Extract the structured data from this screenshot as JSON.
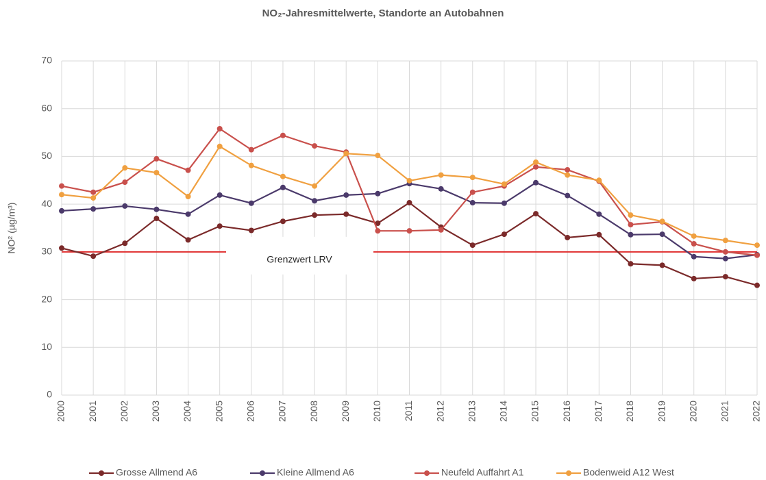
{
  "chart_data": {
    "type": "line",
    "title": "NO₂-Jahresmittelwerte, Standorte an Autobahnen",
    "y_label": "NO² (µg/m³)",
    "categories": [
      "2000",
      "2001",
      "2002",
      "2003",
      "2004",
      "2005",
      "2006",
      "2007",
      "2008",
      "2009",
      "2010",
      "2011",
      "2012",
      "2013",
      "2014",
      "2015",
      "2016",
      "2017",
      "2018",
      "2019",
      "2020",
      "2021",
      "2022"
    ],
    "series": [
      {
        "name": "Grosse Allmend A6",
        "color": "#7b2a2a",
        "values": [
          30.8,
          29.1,
          31.8,
          37.0,
          32.5,
          35.4,
          34.5,
          36.4,
          37.7,
          37.9,
          36.0,
          40.3,
          35.2,
          31.4,
          33.7,
          38.0,
          33.0,
          33.6,
          27.5,
          27.2,
          24.4,
          24.8,
          23.0
        ]
      },
      {
        "name": "Kleine Allmend A6",
        "color": "#4b3a6b",
        "values": [
          38.6,
          39.0,
          39.6,
          38.9,
          37.9,
          41.9,
          40.2,
          43.5,
          40.7,
          41.9,
          42.2,
          44.3,
          43.2,
          40.3,
          40.2,
          44.5,
          41.8,
          37.9,
          33.6,
          33.7,
          29.0,
          28.6,
          29.4
        ]
      },
      {
        "name": "Neufeld Auffahrt A1",
        "color": "#c9504c",
        "values": [
          43.8,
          42.5,
          44.6,
          49.5,
          47.1,
          55.8,
          51.4,
          54.4,
          52.2,
          50.9,
          34.4,
          34.4,
          34.6,
          42.5,
          43.8,
          47.8,
          47.2,
          44.8,
          35.7,
          36.3,
          31.7,
          30.0,
          29.3
        ]
      },
      {
        "name": "Bodenweid A12 West",
        "color": "#f0a040",
        "values": [
          42.0,
          41.3,
          47.6,
          46.6,
          41.6,
          52.1,
          48.1,
          45.8,
          43.8,
          50.6,
          50.2,
          44.9,
          46.1,
          45.6,
          44.2,
          48.8,
          46.1,
          45.0,
          37.7,
          36.4,
          33.3,
          32.4,
          31.4
        ]
      }
    ],
    "reference_line": {
      "value": 30,
      "label": "Grenzwert LRV",
      "color": "#e03030"
    },
    "ylim": [
      0,
      70
    ],
    "yticks": [
      0,
      10,
      20,
      30,
      40,
      50,
      60,
      70
    ],
    "grid": true,
    "legend": "bottom"
  }
}
